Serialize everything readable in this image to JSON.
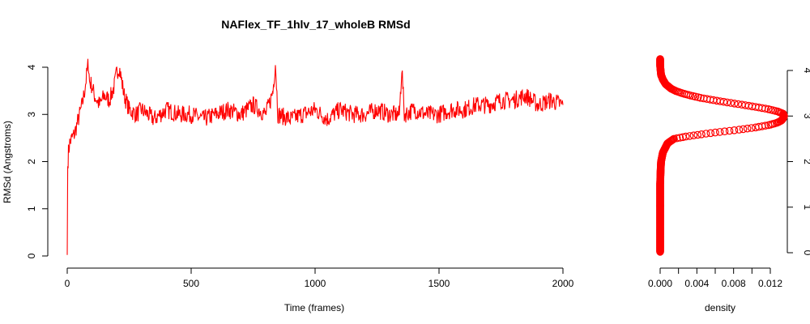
{
  "chart_data": [
    {
      "type": "line",
      "title": "NAFlex_TF_1hlv_17_wholeB RMSd",
      "xlabel": "Time (frames)",
      "ylabel": "RMSd (Angstroms)",
      "xlim": [
        0,
        2000
      ],
      "ylim": [
        0,
        4.2
      ],
      "xticks": [
        "0",
        "500",
        "1000",
        "1500",
        "2000"
      ],
      "yticks": [
        "0",
        "1",
        "2",
        "3",
        "4"
      ],
      "grid": false,
      "color": "#ff0000",
      "series": [
        {
          "x": [
            0,
            2,
            5,
            10,
            20,
            30,
            40,
            50,
            60,
            70,
            80,
            85,
            90,
            100,
            110,
            120,
            130,
            150,
            170,
            190,
            200,
            210,
            220,
            230,
            250,
            280,
            300,
            350,
            400,
            450,
            500,
            550,
            600,
            650,
            700,
            750,
            800,
            820,
            830,
            840,
            850,
            900,
            950,
            1000,
            1050,
            1100,
            1150,
            1200,
            1250,
            1300,
            1340,
            1350,
            1360,
            1400,
            1450,
            1500,
            1550,
            1600,
            1650,
            1700,
            1750,
            1800,
            1850,
            1900,
            1950,
            2000
          ],
          "y": [
            0.02,
            1.9,
            2.2,
            2.4,
            2.5,
            2.6,
            2.8,
            3.0,
            3.2,
            3.5,
            3.9,
            4.1,
            3.7,
            3.6,
            3.4,
            3.3,
            3.2,
            3.4,
            3.3,
            3.6,
            3.9,
            4.0,
            3.7,
            3.4,
            3.1,
            3.0,
            3.1,
            2.9,
            3.1,
            3.0,
            3.0,
            2.9,
            3.0,
            3.1,
            3.0,
            3.2,
            3.0,
            3.3,
            3.5,
            4.1,
            3.0,
            2.9,
            3.0,
            3.1,
            2.9,
            3.1,
            3.0,
            3.0,
            3.1,
            3.0,
            3.0,
            4.0,
            3.0,
            3.1,
            3.0,
            3.0,
            3.1,
            3.1,
            3.2,
            3.2,
            3.3,
            3.3,
            3.4,
            3.2,
            3.3,
            3.2
          ]
        }
      ]
    },
    {
      "type": "scatter",
      "xlabel": "density",
      "ylabel": "",
      "xlim": [
        0,
        0.014
      ],
      "ylim": [
        0,
        4.2
      ],
      "xticks": [
        "0.000",
        "0.004",
        "0.008",
        "0.012"
      ],
      "yticks": [
        "0",
        "1",
        "2",
        "3",
        "4"
      ],
      "y_axis_side": "right",
      "grid": false,
      "color": "#ff0000",
      "series": [
        {
          "y": [
            0.02,
            0.5,
            1.0,
            1.5,
            1.8,
            2.0,
            2.2,
            2.4,
            2.5,
            2.55,
            2.6,
            2.65,
            2.7,
            2.75,
            2.8,
            2.85,
            2.9,
            2.95,
            3.0,
            3.05,
            3.1,
            3.15,
            3.2,
            3.25,
            3.3,
            3.35,
            3.4,
            3.45,
            3.5,
            3.55,
            3.6,
            3.7,
            3.8,
            3.9,
            4.0,
            4.1,
            4.25
          ],
          "x": [
            0.0,
            0.0,
            0.0,
            0.0,
            5e-05,
            0.0001,
            0.0003,
            0.0008,
            0.0015,
            0.0028,
            0.0045,
            0.0065,
            0.0086,
            0.0104,
            0.0118,
            0.0127,
            0.0132,
            0.0134,
            0.0135,
            0.0134,
            0.0128,
            0.0118,
            0.0104,
            0.0089,
            0.0073,
            0.0058,
            0.0044,
            0.0033,
            0.0024,
            0.0017,
            0.0012,
            0.0006,
            0.0003,
            0.0001,
            5e-05,
            0.0,
            0.0
          ]
        }
      ]
    }
  ]
}
